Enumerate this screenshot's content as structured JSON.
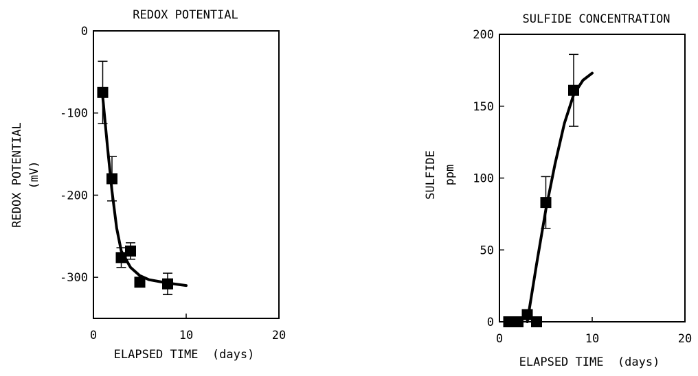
{
  "chart_data": [
    {
      "id": "redox",
      "type": "scatter",
      "title": "REDOX POTENTIAL",
      "xlabel": "ELAPSED TIME  (days)",
      "ylabel": "REDOX POTENTIAL",
      "ylabel2": "(mV)",
      "xlim": [
        0,
        20
      ],
      "ylim": [
        -350,
        0
      ],
      "xticks": [
        0,
        10,
        20
      ],
      "yticks": [
        0,
        -100,
        -200,
        -300
      ],
      "grid": false,
      "series": [
        {
          "points": [
            {
              "x": 1,
              "y": -75,
              "err": 38
            },
            {
              "x": 2,
              "y": -180,
              "err": 27
            },
            {
              "x": 3,
              "y": -276,
              "err": 12
            },
            {
              "x": 4,
              "y": -268,
              "err": 10
            },
            {
              "x": 5,
              "y": -306,
              "err": 0
            },
            {
              "x": 8,
              "y": -308,
              "err": 13
            }
          ],
          "fit": [
            [
              1,
              -80
            ],
            [
              1.5,
              -140
            ],
            [
              2,
              -195
            ],
            [
              2.5,
              -240
            ],
            [
              3,
              -268
            ],
            [
              4,
              -288
            ],
            [
              5,
              -298
            ],
            [
              6,
              -303
            ],
            [
              8,
              -307
            ],
            [
              10,
              -310
            ]
          ]
        }
      ]
    },
    {
      "id": "sulfide",
      "type": "scatter",
      "title": "SULFIDE CONCENTRATION",
      "xlabel": "ELAPSED TIME  (days)",
      "ylabel": "SULFIDE",
      "ylabel2": "ppm",
      "xlim": [
        0,
        20
      ],
      "ylim": [
        0,
        200
      ],
      "xticks": [
        0,
        10,
        20
      ],
      "yticks": [
        0,
        50,
        100,
        150,
        200
      ],
      "grid": false,
      "series": [
        {
          "points": [
            {
              "x": 1,
              "y": 0,
              "err": 0
            },
            {
              "x": 2,
              "y": 0,
              "err": 0
            },
            {
              "x": 3,
              "y": 5,
              "err": 0
            },
            {
              "x": 4,
              "y": 0,
              "err": 0
            },
            {
              "x": 5,
              "y": 83,
              "err": 18
            },
            {
              "x": 8,
              "y": 161,
              "err": 25
            }
          ],
          "fit": [
            [
              3,
              0
            ],
            [
              4,
              40
            ],
            [
              5,
              78
            ],
            [
              6,
              110
            ],
            [
              7,
              138
            ],
            [
              8,
              158
            ],
            [
              9,
              168
            ],
            [
              10,
              173
            ]
          ]
        }
      ]
    }
  ]
}
